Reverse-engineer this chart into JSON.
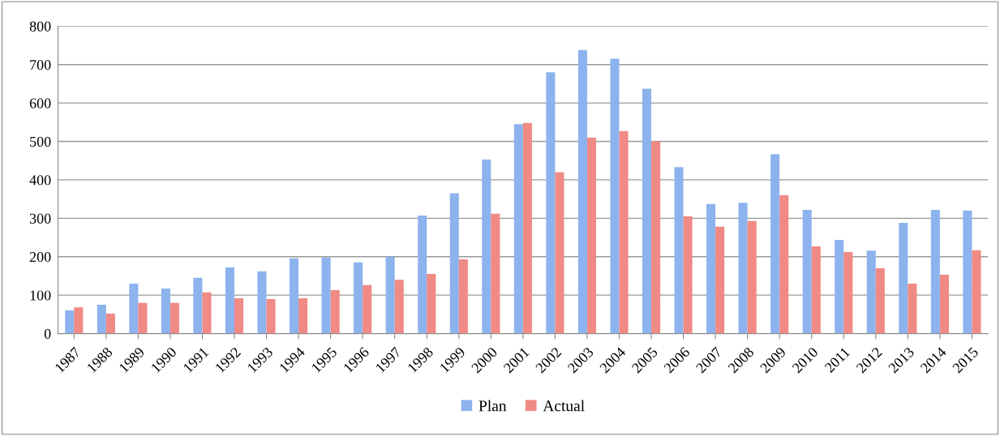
{
  "chart_data": {
    "type": "bar",
    "categories": [
      "1987",
      "1988",
      "1989",
      "1990",
      "1991",
      "1992",
      "1993",
      "1994",
      "1995",
      "1996",
      "1997",
      "1998",
      "1999",
      "2000",
      "2001",
      "2002",
      "2003",
      "2004",
      "2005",
      "2006",
      "2007",
      "2008",
      "2009",
      "2010",
      "2011",
      "2012",
      "2013",
      "2014",
      "2015"
    ],
    "series": [
      {
        "name": "Plan",
        "color": "#8db3ee",
        "values": [
          60,
          75,
          130,
          117,
          145,
          172,
          162,
          196,
          198,
          185,
          200,
          307,
          365,
          453,
          545,
          680,
          738,
          715,
          637,
          433,
          337,
          340,
          467,
          322,
          244,
          216,
          288,
          322,
          320
        ]
      },
      {
        "name": "Actual",
        "color": "#f08a84",
        "values": [
          68,
          52,
          80,
          80,
          107,
          92,
          90,
          92,
          113,
          126,
          140,
          155,
          193,
          312,
          548,
          420,
          510,
          527,
          500,
          305,
          278,
          293,
          360,
          227,
          212,
          170,
          130,
          153,
          217
        ]
      }
    ],
    "ylim": [
      0,
      800
    ],
    "yticks": [
      0,
      100,
      200,
      300,
      400,
      500,
      600,
      700,
      800
    ],
    "grid": "y",
    "legend": "bottom"
  }
}
